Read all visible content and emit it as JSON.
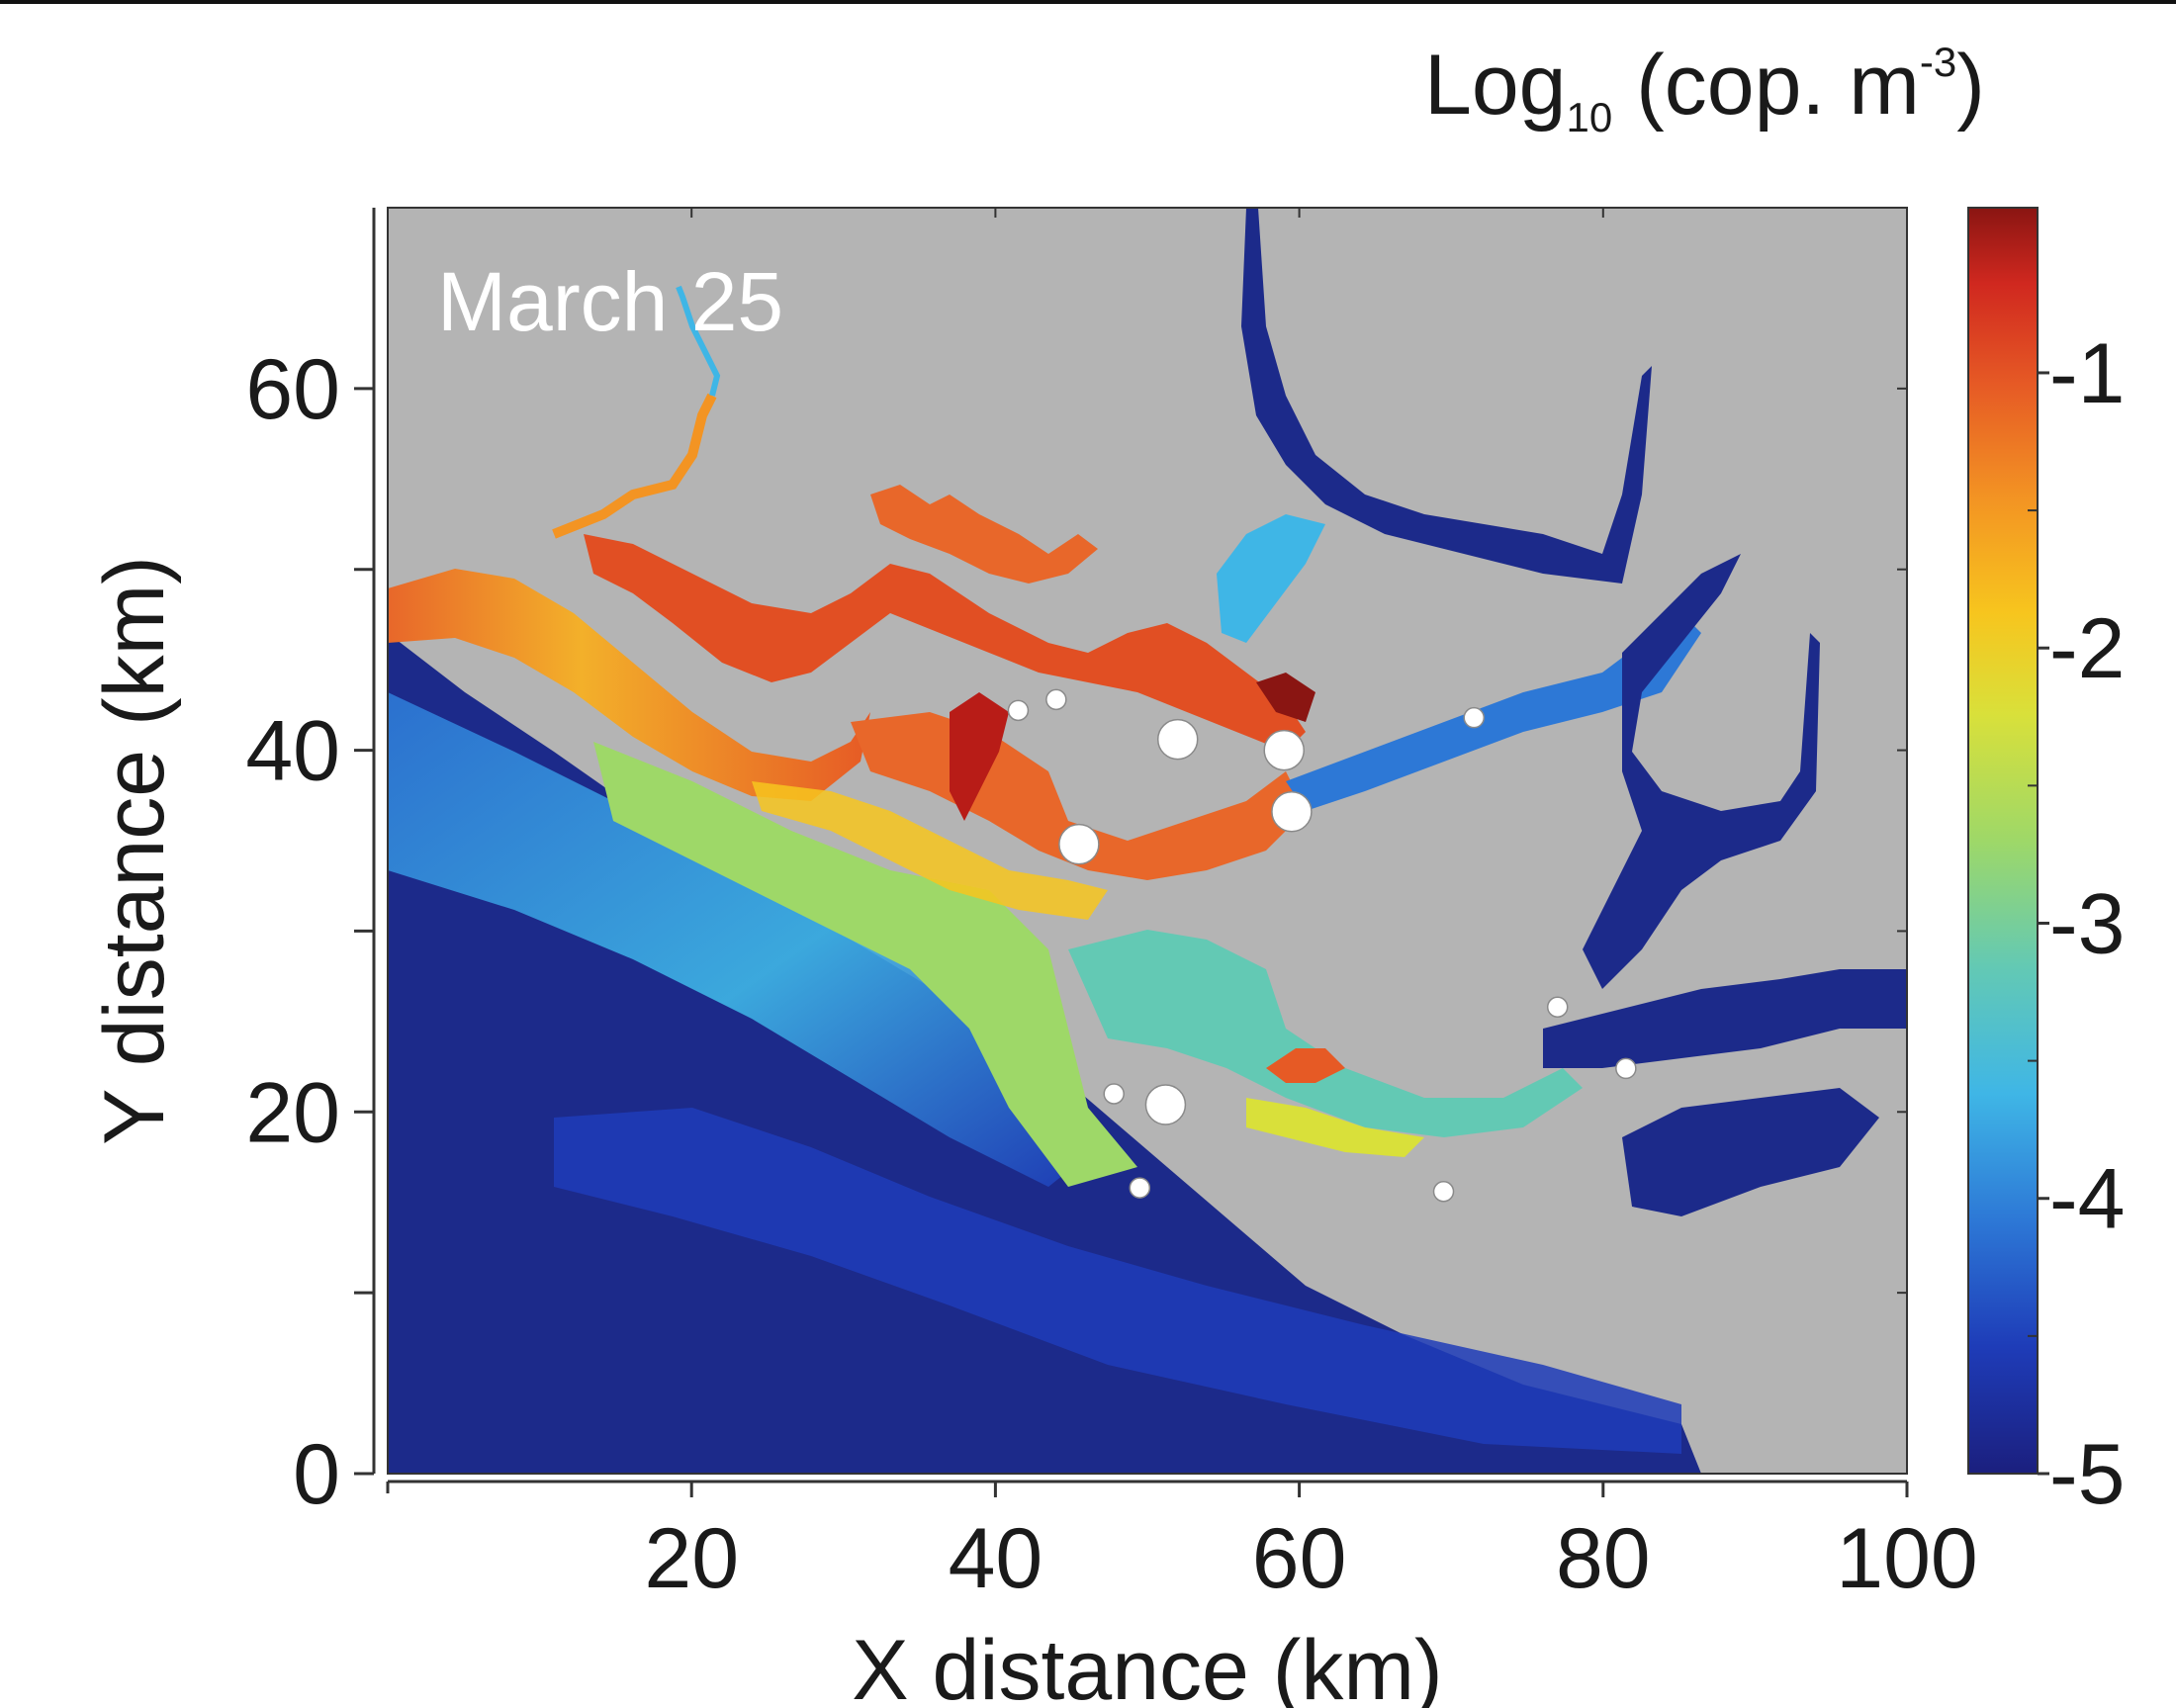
{
  "chart_data": {
    "type": "heatmap",
    "title": "March 25",
    "xlabel": "X distance (km)",
    "ylabel": "Y distance (km)",
    "xlim": [
      0,
      100
    ],
    "ylim": [
      0,
      70
    ],
    "x_ticks": [
      20,
      40,
      60,
      80,
      100
    ],
    "y_ticks": [
      0,
      20,
      40,
      60
    ],
    "colorbar": {
      "label_base": "Log",
      "label_sub": "10",
      "label_mid": " (cop. m",
      "label_sup": "-3",
      "label_end": ")",
      "range": [
        -5,
        -0.4
      ],
      "ticks": [
        -1,
        -2,
        -3,
        -4,
        -5
      ],
      "colormap": [
        "#1b1f7e",
        "#1e3cb8",
        "#2d78d6",
        "#3fb6e6",
        "#63c9b4",
        "#9ed868",
        "#d9e03a",
        "#f7c51e",
        "#f39423",
        "#e65a25",
        "#d0281f",
        "#8a1512"
      ]
    },
    "background_color": "#b4b4b4",
    "stations": [
      {
        "x": 41.5,
        "y": 42.2,
        "size": "small"
      },
      {
        "x": 44.0,
        "y": 42.8,
        "size": "small"
      },
      {
        "x": 52.0,
        "y": 40.6,
        "size": "large"
      },
      {
        "x": 59.0,
        "y": 40.0,
        "size": "large"
      },
      {
        "x": 59.5,
        "y": 36.6,
        "size": "large"
      },
      {
        "x": 45.5,
        "y": 34.8,
        "size": "large"
      },
      {
        "x": 71.5,
        "y": 41.8,
        "size": "small"
      },
      {
        "x": 77.0,
        "y": 25.8,
        "size": "small"
      },
      {
        "x": 81.5,
        "y": 22.4,
        "size": "small"
      },
      {
        "x": 47.8,
        "y": 21.0,
        "size": "small"
      },
      {
        "x": 51.2,
        "y": 20.4,
        "size": "large"
      },
      {
        "x": 49.5,
        "y": 15.8,
        "size": "small"
      },
      {
        "x": 69.5,
        "y": 15.6,
        "size": "small"
      }
    ]
  }
}
